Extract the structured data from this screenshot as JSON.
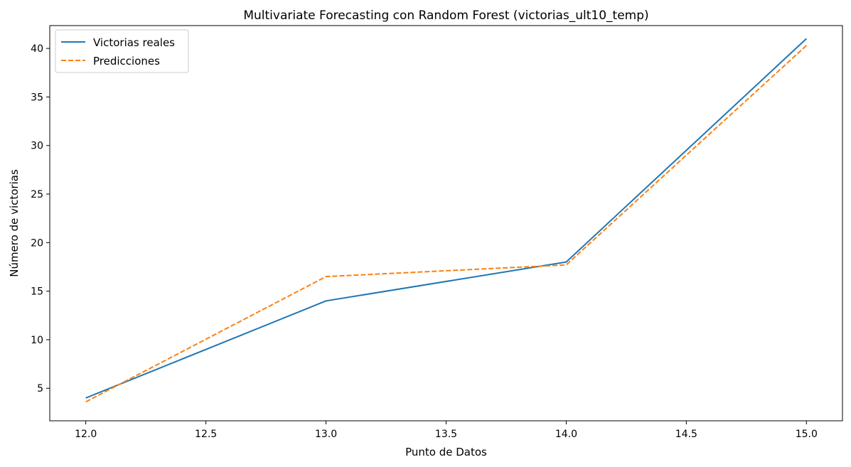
{
  "chart_data": {
    "type": "line",
    "title": "Multivariate Forecasting con Random Forest (victorias_ult10_temp)",
    "xlabel": "Punto de Datos",
    "ylabel": "Número de victorias",
    "xlim": [
      11.85,
      15.15
    ],
    "ylim": [
      1.65,
      42.35
    ],
    "xticks": [
      12.0,
      12.5,
      13.0,
      13.5,
      14.0,
      14.5,
      15.0
    ],
    "xtick_labels": [
      "12.0",
      "12.5",
      "13.0",
      "13.5",
      "14.0",
      "14.5",
      "15.0"
    ],
    "yticks": [
      5,
      10,
      15,
      20,
      25,
      30,
      35,
      40
    ],
    "ytick_labels": [
      "5",
      "10",
      "15",
      "20",
      "25",
      "30",
      "35",
      "40"
    ],
    "grid": false,
    "legend_position": "top-left",
    "series": [
      {
        "name": "Victorias reales",
        "x": [
          12,
          13,
          14,
          15
        ],
        "y": [
          4,
          14,
          18,
          41
        ],
        "color": "#1f77b4",
        "style": "solid"
      },
      {
        "name": "Predicciones",
        "x": [
          12,
          13,
          14,
          15
        ],
        "y": [
          3.6,
          16.5,
          17.7,
          40.3
        ],
        "color": "#ff7f0e",
        "style": "dashed"
      }
    ]
  }
}
